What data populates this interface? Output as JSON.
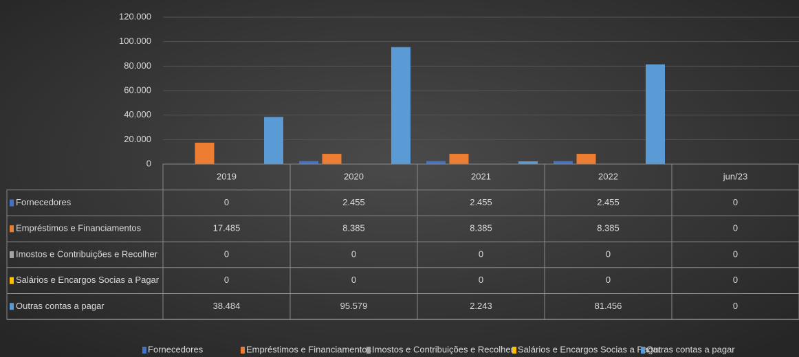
{
  "chart_data": {
    "type": "bar",
    "categories": [
      "2019",
      "2020",
      "2021",
      "2022",
      "jun/23"
    ],
    "series": [
      {
        "name": "Fornecedores",
        "color": "#4472c4",
        "values": [
          0,
          2455,
          2455,
          2455,
          0
        ],
        "value_labels": [
          "0",
          "2.455",
          "2.455",
          "2.455",
          "0"
        ]
      },
      {
        "name": "Empréstimos e Financiamentos",
        "color": "#ed7d31",
        "values": [
          17485,
          8385,
          8385,
          8385,
          0
        ],
        "value_labels": [
          "17.485",
          "8.385",
          "8.385",
          "8.385",
          "0"
        ]
      },
      {
        "name": "Imostos e Contribuições e Recolher",
        "color": "#a5a5a5",
        "values": [
          0,
          0,
          0,
          0,
          0
        ]
      },
      {
        "name": "Salários e Encargos Socias a Pagar",
        "color": "#ffc000",
        "values": [
          0,
          0,
          0,
          0,
          0
        ]
      },
      {
        "name": "Outras contas a pagar",
        "color": "#5b9bd5",
        "values": [
          38484,
          95579,
          2243,
          81456,
          0
        ],
        "value_labels": [
          "38.484",
          "95.579",
          "2.243",
          "81.456",
          "0"
        ]
      }
    ],
    "ylim": [
      0,
      120000
    ],
    "yticks": [
      0,
      {
        "value": 20000,
        "label": "20.000"
      },
      {
        "value": 40000,
        "label": "40.000"
      },
      {
        "value": 60000,
        "label": "60.000"
      },
      {
        "value": 80000,
        "label": "80.000"
      },
      {
        "value": 100000,
        "label": "100.000"
      },
      {
        "value": 120000,
        "label": "120.000"
      }
    ],
    "grid": true,
    "legend": "bottom"
  }
}
